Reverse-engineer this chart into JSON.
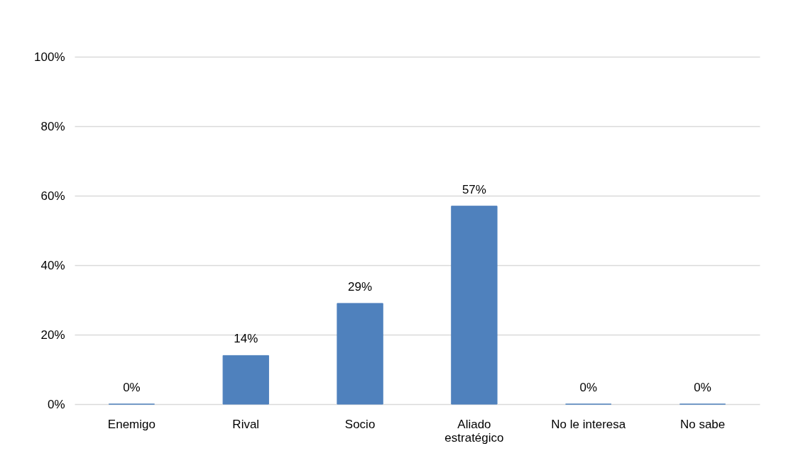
{
  "chart_data": {
    "type": "bar",
    "categories": [
      "Enemigo",
      "Rival",
      "Socio",
      "Aliado estratégico",
      "No le interesa",
      "No sabe"
    ],
    "values": [
      0,
      14,
      29,
      57,
      0,
      0
    ],
    "value_labels": [
      "0%",
      "14%",
      "29%",
      "57%",
      "0%",
      "0%"
    ],
    "color": "#4f81bd",
    "ylim": [
      0,
      100
    ],
    "yticks": [
      {
        "value": 0,
        "label": "0%"
      },
      {
        "value": 20,
        "label": "20%"
      },
      {
        "value": 40,
        "label": "40%"
      },
      {
        "value": 60,
        "label": "60%"
      },
      {
        "value": 80,
        "label": "80%"
      },
      {
        "value": 100,
        "label": "100%"
      }
    ],
    "grid": true
  }
}
